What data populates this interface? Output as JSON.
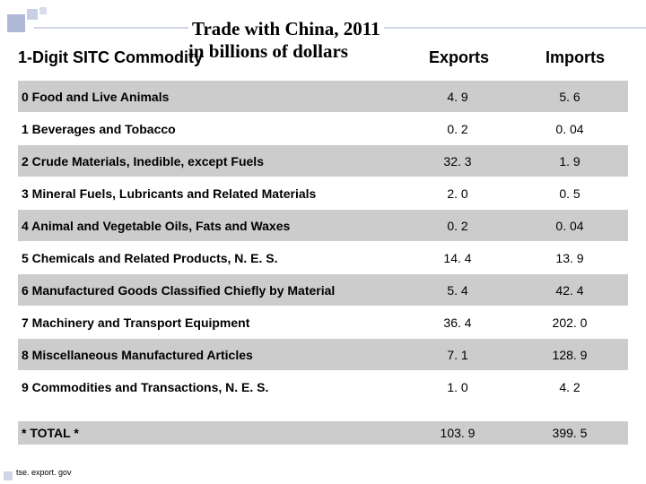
{
  "title": {
    "line1": "Trade with China, 2011",
    "line2": "in billions of dollars"
  },
  "columns": {
    "c1": "1-Digit SITC Commodity",
    "c2": "Exports",
    "c3": "Imports"
  },
  "rows": [
    {
      "label": "0 Food and Live Animals",
      "exports": "4. 9",
      "imports": "5. 6"
    },
    {
      "label": "1 Beverages and Tobacco",
      "exports": "0. 2",
      "imports": "0. 04"
    },
    {
      "label": "2 Crude Materials, Inedible, except Fuels",
      "exports": "32. 3",
      "imports": "1. 9"
    },
    {
      "label": "3 Mineral Fuels, Lubricants and Related Materials",
      "exports": "2. 0",
      "imports": "0. 5"
    },
    {
      "label": "4 Animal and Vegetable Oils, Fats and Waxes",
      "exports": "0. 2",
      "imports": "0. 04"
    },
    {
      "label": "5 Chemicals and Related Products, N. E. S.",
      "exports": "14. 4",
      "imports": "13. 9"
    },
    {
      "label": "6 Manufactured Goods Classified Chiefly by Material",
      "exports": "5. 4",
      "imports": "42. 4"
    },
    {
      "label": "7 Machinery and Transport Equipment",
      "exports": "36. 4",
      "imports": "202. 0"
    },
    {
      "label": "8 Miscellaneous Manufactured Articles",
      "exports": "7. 1",
      "imports": "128. 9"
    },
    {
      "label": "9 Commodities and Transactions, N. E. S.",
      "exports": "1. 0",
      "imports": "4. 2"
    }
  ],
  "total": {
    "label": "* TOTAL *",
    "exports": "103. 9",
    "imports": "399. 5"
  },
  "source": "tse. export. gov",
  "style": {
    "background": "#ffffff",
    "shaded_row_bg": "#cccccc",
    "text_color": "#000000",
    "deco_color": "#d0d6e8",
    "title_fontsize": 21,
    "header_fontsize": 18,
    "row_fontsize": 14
  }
}
